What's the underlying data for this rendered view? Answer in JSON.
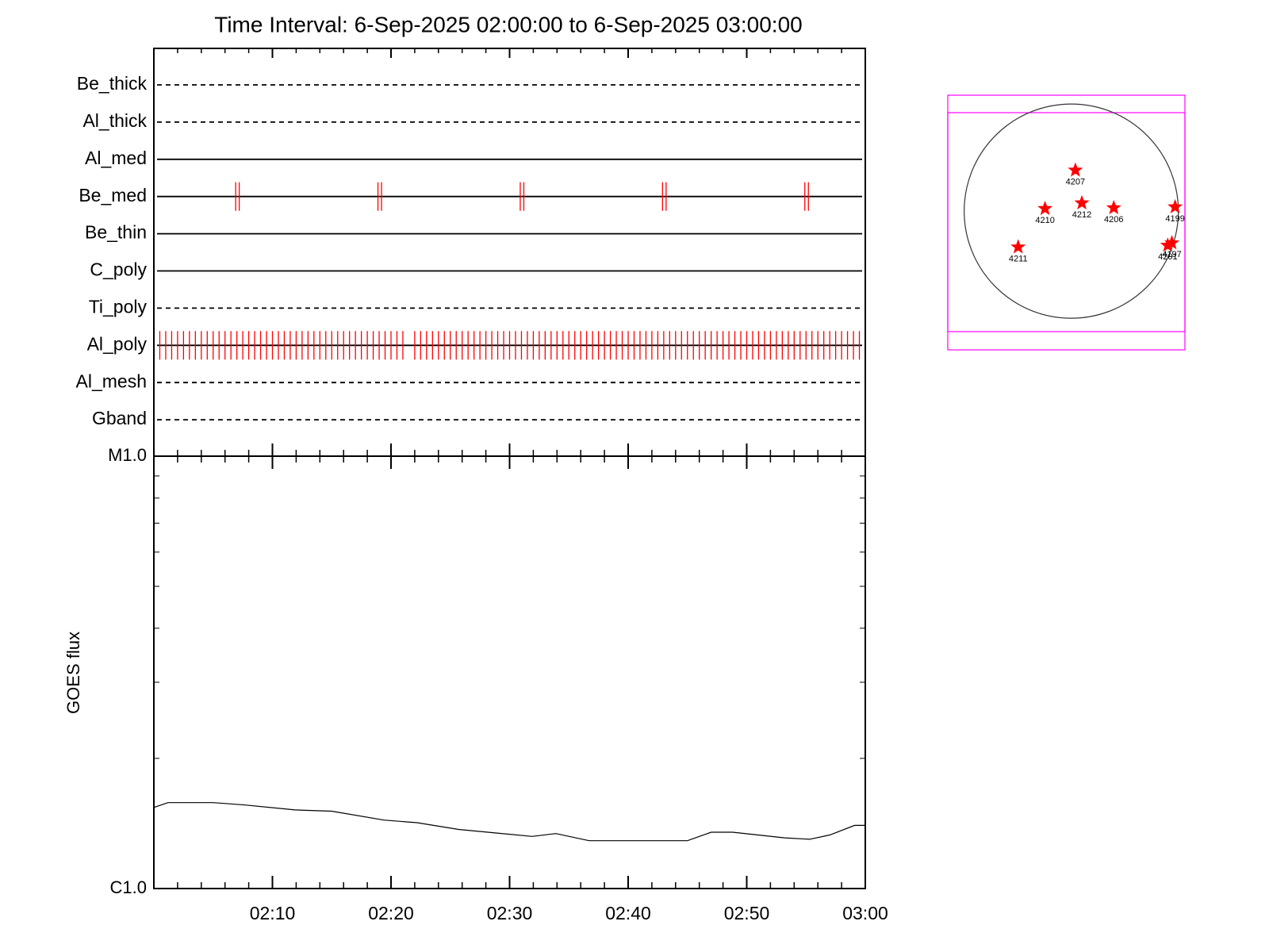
{
  "chart_data": [
    {
      "type": "timeline",
      "title": "Time Interval:  6-Sep-2025 02:00:00 to  6-Sep-2025 03:00:00",
      "categories": [
        "Be_thick",
        "Al_thick",
        "Al_med",
        "Be_med",
        "Be_thin",
        "C_poly",
        "Ti_poly",
        "Al_poly",
        "Al_mesh",
        "Gband"
      ],
      "line_styles": [
        "dashed",
        "dashed",
        "solid",
        "solid",
        "solid",
        "solid",
        "dashed",
        "solid",
        "dashed",
        "dashed"
      ],
      "event_color": "#ff0000",
      "events": [
        [],
        [],
        [],
        [
          6.9,
          7.2,
          18.9,
          19.2,
          30.9,
          31.2,
          42.9,
          43.2,
          54.9,
          55.2
        ],
        [],
        [],
        [],
        [
          0.5,
          1,
          1.5,
          2,
          2.5,
          3,
          3.5,
          4,
          4.5,
          5,
          5.5,
          6,
          6.5,
          7,
          7.5,
          8,
          8.5,
          9,
          9.5,
          10,
          10.5,
          11,
          11.5,
          12,
          12.5,
          13,
          13.5,
          14,
          14.5,
          15,
          15.5,
          16,
          16.5,
          17,
          17.5,
          18,
          18.5,
          19,
          19.5,
          20,
          20.5,
          21,
          22,
          22.5,
          23,
          23.5,
          24,
          24.5,
          25,
          25.5,
          26,
          26.5,
          27,
          27.5,
          28,
          28.5,
          29,
          29.5,
          30,
          30.5,
          31,
          31.5,
          32,
          32.5,
          33,
          33.5,
          34,
          34.5,
          35,
          35.5,
          36,
          36.5,
          37,
          37.5,
          38,
          38.5,
          39,
          39.5,
          40,
          40.5,
          41,
          41.5,
          42,
          42.5,
          43,
          43.5,
          44,
          44.5,
          45,
          45.5,
          46,
          46.5,
          47,
          47.5,
          48,
          48.5,
          49,
          49.5,
          50,
          50.5,
          51,
          51.5,
          52,
          52.5,
          53,
          53.5,
          54,
          54.5,
          55,
          55.5,
          56,
          56.5,
          57,
          57.5,
          58,
          58.5,
          59,
          59.5
        ],
        [],
        []
      ],
      "xlim": [
        0,
        60
      ]
    },
    {
      "type": "line",
      "y_label": "GOES flux",
      "log_y": true,
      "color": "#000000",
      "x": [
        0,
        1.2,
        5,
        7.7,
        11.9,
        15,
        19.4,
        22.2,
        25.7,
        31.9,
        33.9,
        36.7,
        45,
        47,
        48.8,
        53.2,
        55.3,
        57,
        59.1,
        60
      ],
      "values": [
        1.54e-06,
        1.58e-06,
        1.58e-06,
        1.56e-06,
        1.52e-06,
        1.51e-06,
        1.44e-06,
        1.42e-06,
        1.37e-06,
        1.32e-06,
        1.34e-06,
        1.29e-06,
        1.29e-06,
        1.35e-06,
        1.35e-06,
        1.31e-06,
        1.3e-06,
        1.33e-06,
        1.4e-06,
        1.4e-06
      ],
      "xlim": [
        0,
        60
      ],
      "xticks": [
        {
          "value": 10,
          "label": "02:10"
        },
        {
          "value": 20,
          "label": "02:20"
        },
        {
          "value": 30,
          "label": "02:30"
        },
        {
          "value": 40,
          "label": "02:40"
        },
        {
          "value": 50,
          "label": "02:50"
        },
        {
          "value": 60,
          "label": "03:00"
        }
      ],
      "xminorticks": [
        2,
        4,
        6,
        8,
        12,
        14,
        16,
        18,
        22,
        24,
        26,
        28,
        32,
        34,
        36,
        38,
        42,
        44,
        46,
        48,
        52,
        54,
        56,
        58
      ],
      "ylim": [
        1e-06,
        1e-05
      ],
      "yticks": [
        {
          "value": 1e-06,
          "label": "C1.0"
        },
        {
          "value": 1e-05,
          "label": "M1.0"
        }
      ],
      "yminorticks": [
        2e-06,
        3e-06,
        4e-06,
        5e-06,
        6e-06,
        7e-06,
        8e-06,
        9e-06
      ]
    },
    {
      "type": "map",
      "radius": 960,
      "color": "#ff0000",
      "names": [
        "4207",
        "4210",
        "4212",
        "4206",
        "4199",
        "4211",
        "4197",
        "4201"
      ],
      "x": [
        37,
        -235,
        95,
        381,
        931,
        -476,
        902,
        865
      ],
      "y": [
        367,
        22,
        73,
        29,
        37,
        -323,
        -286,
        -308
      ],
      "xlim": [
        -1107,
        1019
      ],
      "ylim": [
        -1246,
        1041
      ]
    }
  ]
}
